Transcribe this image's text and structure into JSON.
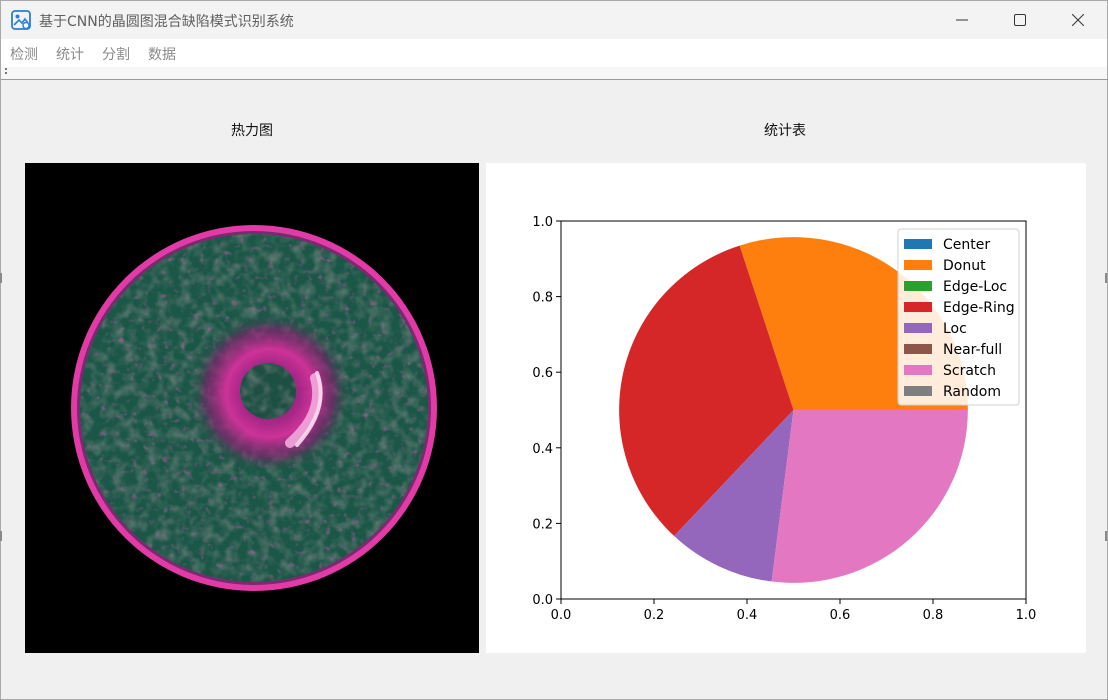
{
  "window": {
    "title": "基于CNN的晶圆图混合缺陷模式识别系统",
    "controls": {
      "minimize": "minimize-icon",
      "maximize": "maximize-icon",
      "close": "close-icon"
    }
  },
  "menu": {
    "items": [
      {
        "label": "检测"
      },
      {
        "label": "统计"
      },
      {
        "label": "分割"
      },
      {
        "label": "数据"
      }
    ]
  },
  "panels": {
    "heatmap_label": "热力图",
    "stats_label": "统计表"
  },
  "chart_data": {
    "type": "pie",
    "labels": [
      "Center",
      "Donut",
      "Edge-Loc",
      "Edge-Ring",
      "Loc",
      "Near-full",
      "Scratch",
      "Random"
    ],
    "values": [
      0,
      30,
      0,
      33,
      10,
      0,
      27,
      0
    ],
    "colors": [
      "#1f77b4",
      "#ff7f0e",
      "#2ca02c",
      "#d62728",
      "#9467bd",
      "#8c564b",
      "#e377c2",
      "#7f7f7f"
    ],
    "legend_position": "top-right",
    "xlim": [
      0,
      1
    ],
    "ylim": [
      0,
      1
    ],
    "xticks": [
      "0.0",
      "0.2",
      "0.4",
      "0.6",
      "0.8",
      "1.0"
    ],
    "yticks": [
      "0.0",
      "0.2",
      "0.4",
      "0.6",
      "0.8",
      "1.0"
    ],
    "grid": false
  }
}
